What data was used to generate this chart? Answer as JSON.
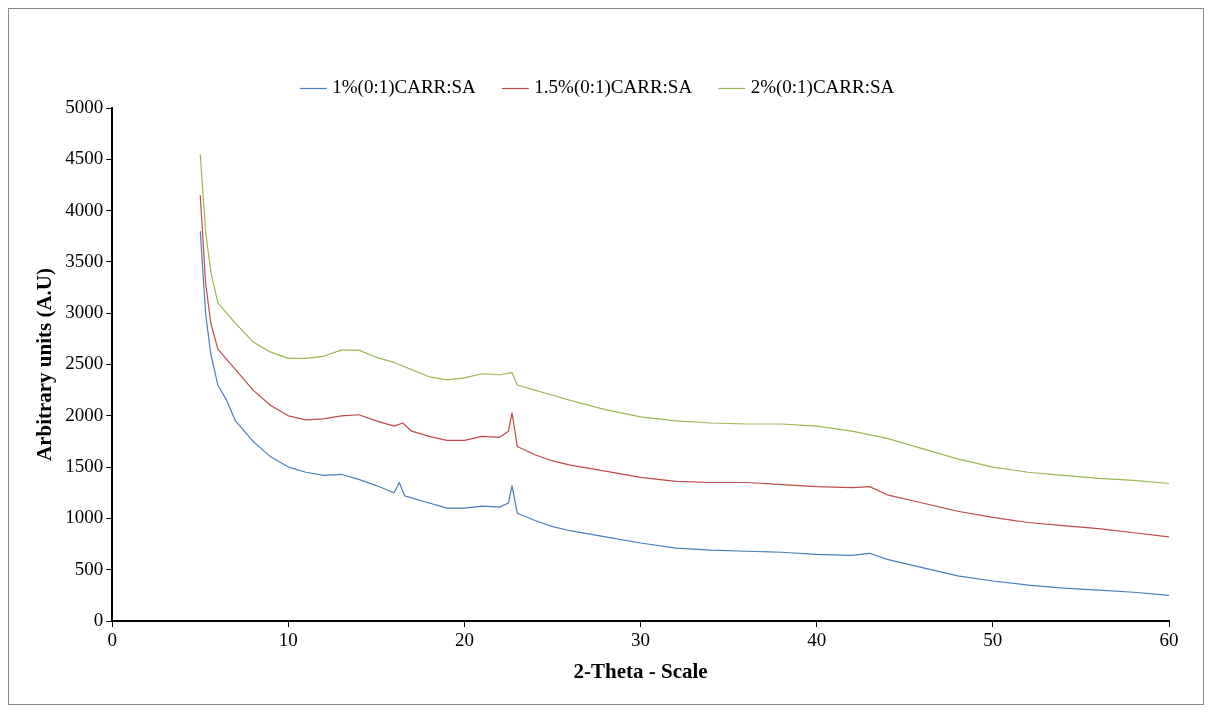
{
  "chart_data": {
    "type": "line",
    "xlabel": "2-Theta - Scale",
    "ylabel": "Arbitrary units (A.U)",
    "xlim": [
      0,
      60
    ],
    "xticks": [
      0,
      10,
      20,
      30,
      40,
      50,
      60
    ],
    "ylim": [
      0,
      5000
    ],
    "yticks": [
      0,
      500,
      1000,
      1500,
      2000,
      2500,
      3000,
      3500,
      4000,
      4500,
      5000
    ],
    "legend": "top",
    "series": [
      {
        "name": "1%(0:1)CARR:SA",
        "color": "#4a7ebb",
        "x": [
          5,
          5.3,
          5.6,
          6,
          6.5,
          7,
          8,
          9,
          10,
          11,
          12,
          13,
          14,
          15,
          16,
          16.3,
          16.6,
          18,
          19,
          20,
          21,
          22,
          22.5,
          22.7,
          23,
          24,
          25,
          26,
          28,
          30,
          32,
          34,
          36,
          38,
          40,
          42,
          43,
          44,
          46,
          48,
          50,
          52,
          54,
          56,
          58,
          60
        ],
        "values": [
          3800,
          3000,
          2600,
          2300,
          2150,
          1950,
          1750,
          1600,
          1500,
          1450,
          1420,
          1430,
          1380,
          1320,
          1250,
          1350,
          1220,
          1150,
          1100,
          1100,
          1120,
          1110,
          1150,
          1320,
          1050,
          980,
          920,
          880,
          820,
          760,
          710,
          690,
          680,
          670,
          650,
          640,
          660,
          600,
          520,
          440,
          390,
          350,
          320,
          300,
          280,
          250
        ]
      },
      {
        "name": "1.5%(0:1)CARR:SA",
        "color": "#be4b48",
        "x": [
          5,
          5.3,
          5.6,
          6,
          7,
          8,
          9,
          10,
          11,
          12,
          13,
          14,
          15,
          16,
          16.5,
          17,
          18,
          19,
          20,
          21,
          22,
          22.5,
          22.7,
          23,
          24,
          25,
          26,
          28,
          30,
          32,
          34,
          36,
          38,
          40,
          42,
          43,
          44,
          46,
          48,
          50,
          52,
          54,
          56,
          58,
          60
        ],
        "values": [
          4150,
          3300,
          2900,
          2650,
          2450,
          2250,
          2100,
          2000,
          1960,
          1970,
          2000,
          2010,
          1950,
          1900,
          1930,
          1850,
          1800,
          1760,
          1760,
          1800,
          1790,
          1850,
          2030,
          1700,
          1620,
          1560,
          1520,
          1460,
          1400,
          1360,
          1350,
          1350,
          1330,
          1310,
          1300,
          1310,
          1230,
          1150,
          1070,
          1010,
          960,
          930,
          900,
          860,
          820
        ]
      },
      {
        "name": "2%(0:1)CARR:SA",
        "color": "#98b954",
        "x": [
          5,
          5.3,
          5.6,
          6,
          7,
          8,
          9,
          10,
          11,
          12,
          13,
          14,
          15,
          16,
          17,
          18,
          19,
          20,
          21,
          22,
          22.7,
          23,
          24,
          25,
          26,
          28,
          30,
          32,
          34,
          36,
          38,
          40,
          42,
          44,
          46,
          48,
          50,
          52,
          54,
          56,
          58,
          60
        ],
        "values": [
          4550,
          3800,
          3400,
          3100,
          2900,
          2720,
          2620,
          2560,
          2560,
          2580,
          2640,
          2640,
          2570,
          2520,
          2450,
          2380,
          2350,
          2370,
          2410,
          2400,
          2420,
          2300,
          2250,
          2200,
          2150,
          2060,
          1990,
          1950,
          1930,
          1920,
          1920,
          1900,
          1850,
          1780,
          1680,
          1580,
          1500,
          1450,
          1420,
          1390,
          1370,
          1340
        ]
      }
    ]
  }
}
